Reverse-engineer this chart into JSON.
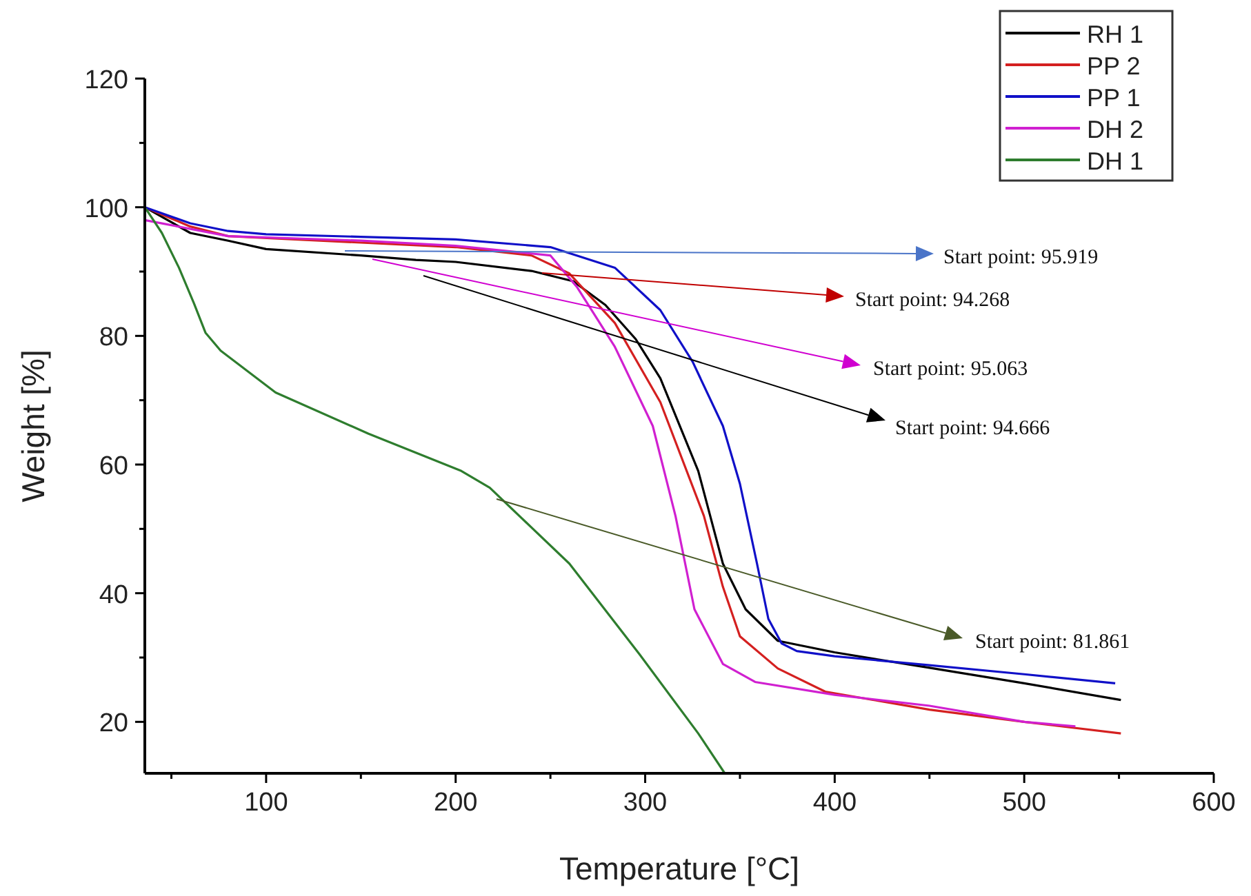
{
  "chart_data": {
    "type": "line",
    "xlabel": "Temperature [°C]",
    "ylabel": "Weight [%]",
    "xlim": [
      36,
      600
    ],
    "ylim": [
      12,
      120
    ],
    "xticks": [
      {
        "value": 50,
        "label": null
      },
      100,
      {
        "value": 150,
        "label": null
      },
      200,
      {
        "value": 250,
        "label": null
      },
      300,
      {
        "value": 350,
        "label": null
      },
      400,
      {
        "value": 450,
        "label": null
      },
      500,
      {
        "value": 550,
        "label": null
      },
      600
    ],
    "yticks": [
      20,
      {
        "value": 30,
        "label": null
      },
      40,
      {
        "value": 50,
        "label": null
      },
      60,
      {
        "value": 70,
        "label": null
      },
      80,
      {
        "value": 90,
        "label": null
      },
      100,
      {
        "value": 110,
        "label": null
      },
      120
    ],
    "grid": false,
    "legend": "top right",
    "marker": "none",
    "line_style": "solid",
    "series": [
      {
        "name": "RH 1",
        "color": "#000000",
        "x": [
          36,
          60,
          80,
          100,
          150,
          179,
          200,
          240,
          262,
          279,
          295,
          308,
          328,
          341,
          353,
          370,
          400,
          450,
          500,
          551
        ],
        "values": [
          100,
          96,
          94.8,
          93.5,
          92.5,
          91.8,
          91.5,
          90.1,
          88.5,
          84.8,
          79.5,
          73.4,
          59,
          44.6,
          37.5,
          32.6,
          30.8,
          28.4,
          26,
          23.4
        ]
      },
      {
        "name": "PP 2",
        "color": "#d42020",
        "x": [
          36,
          60,
          80,
          150,
          200,
          240,
          260,
          284,
          308,
          331,
          341,
          350,
          370,
          395,
          450,
          500,
          551
        ],
        "values": [
          100,
          97,
          95.5,
          94.5,
          93.8,
          92.5,
          89.7,
          82,
          69.7,
          52,
          41,
          33.3,
          28.3,
          24.7,
          21.9,
          20,
          18.2
        ]
      },
      {
        "name": "PP 1",
        "color": "#1010c8",
        "x": [
          36,
          60,
          80,
          100,
          150,
          200,
          250,
          284,
          308,
          325,
          341,
          350,
          359,
          365,
          372,
          380,
          400,
          450,
          500,
          548
        ],
        "values": [
          100,
          97.5,
          96.3,
          95.8,
          95.4,
          95,
          93.8,
          90.6,
          84,
          76,
          66,
          57,
          44.6,
          36,
          32.2,
          31,
          30.2,
          28.8,
          27.4,
          26
        ]
      },
      {
        "name": "DH 2",
        "color": "#d020d0",
        "x": [
          36,
          80,
          150,
          200,
          250,
          264,
          284,
          304,
          316,
          326,
          341,
          358,
          400,
          450,
          500,
          527
        ],
        "values": [
          98,
          95.5,
          94.8,
          94,
          92.5,
          87.6,
          78.3,
          66,
          52,
          37.5,
          29,
          26.2,
          24.2,
          22.5,
          20,
          19.3
        ]
      },
      {
        "name": "DH 1",
        "color": "#2e7d2e",
        "x": [
          36,
          45,
          54,
          62,
          68,
          76,
          105,
          154,
          203,
          218,
          260,
          297,
          328,
          342
        ],
        "values": [
          100,
          96,
          90.6,
          85,
          80.5,
          77.7,
          71.2,
          64.8,
          59,
          56.4,
          44.6,
          30.5,
          18.2,
          12
        ]
      }
    ],
    "annotations": [
      "Start point: 95.919",
      "Start point: 94.268",
      "Start point: 95.063",
      "Start point: 94.666",
      "Start point: 81.861"
    ]
  }
}
